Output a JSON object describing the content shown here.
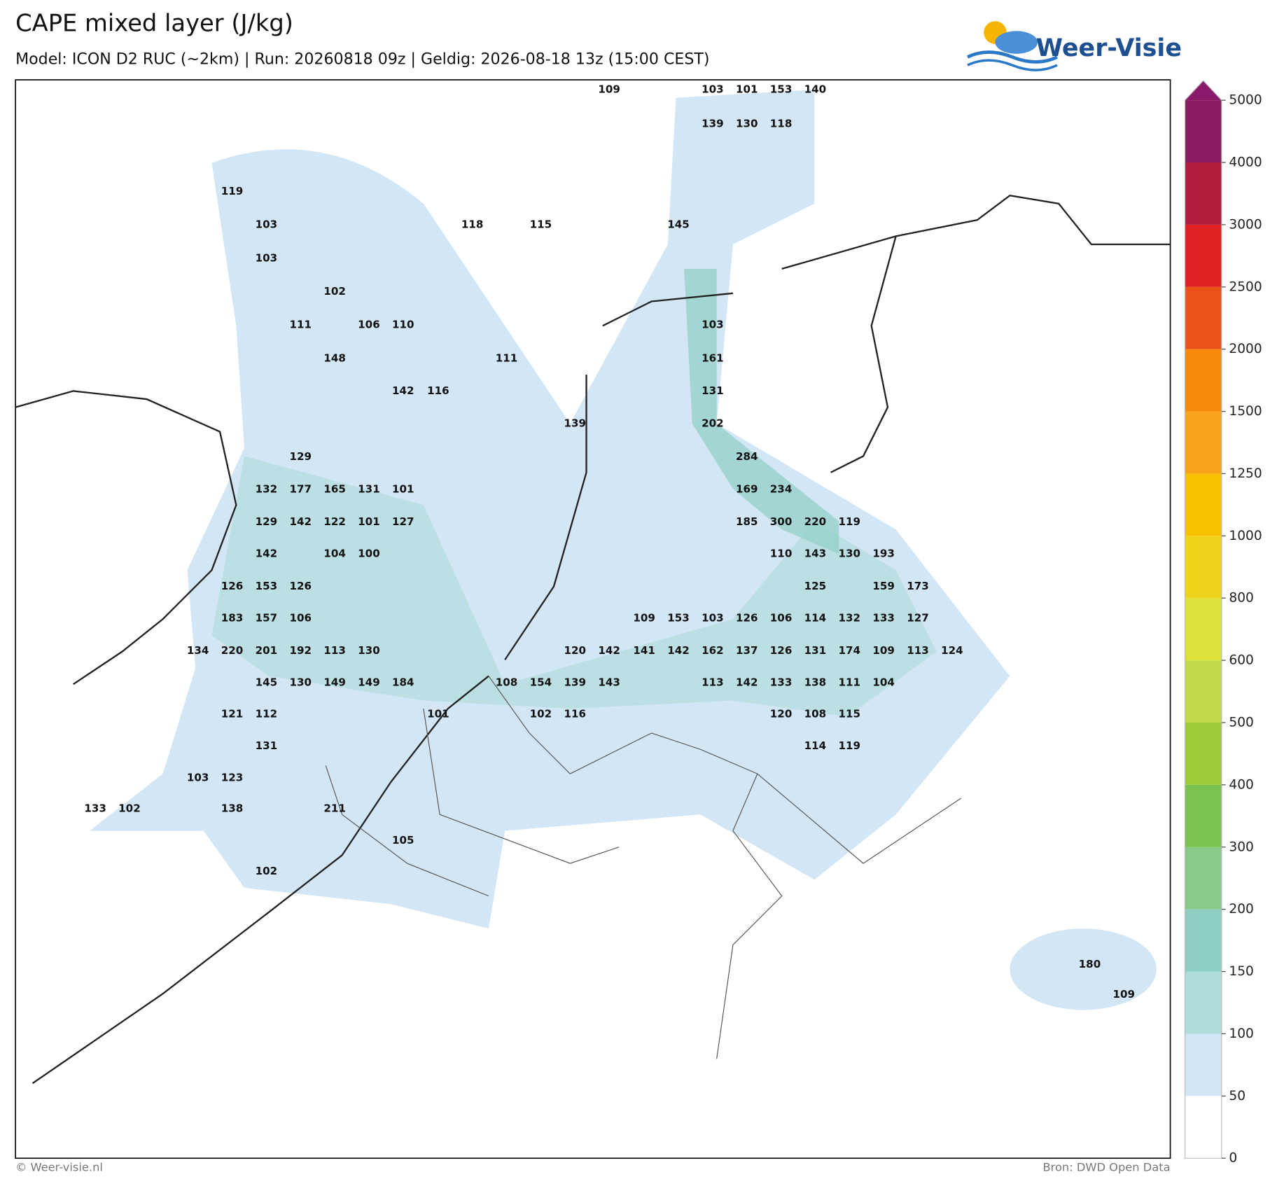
{
  "header": {
    "title": "CAPE mixed layer (J/kg)",
    "subtitle": "Model: ICON D2 RUC (~2km)  |  Run: 20260818 09z  |  Geldig: 2026-08-18 13z (15:00 CEST)",
    "logo": "Weer-Visie"
  },
  "footer": {
    "left": "© Weer-visie.nl",
    "right": "Bron: DWD Open Data"
  },
  "colorbar": {
    "ticks": [
      0,
      50,
      100,
      150,
      200,
      300,
      400,
      500,
      600,
      800,
      1000,
      1250,
      1500,
      2000,
      2500,
      3000,
      4000,
      5000
    ],
    "colors": [
      "#ffffff",
      "#d2e6f5",
      "#b0dcdc",
      "#8ecfc4",
      "#88c98a",
      "#7bc24e",
      "#9ecb3c",
      "#c3d94a",
      "#dce03a",
      "#f0d21b",
      "#f8c200",
      "#f9a21c",
      "#f68b0b",
      "#ea5218",
      "#de2020",
      "#b01d3f",
      "#8a1d60"
    ],
    "extend_color": "#8a1a6b"
  },
  "points": [
    109,
    103,
    101,
    153,
    140,
    139,
    130,
    118,
    119,
    103,
    118,
    115,
    145,
    103,
    102,
    111,
    106,
    110,
    103,
    148,
    111,
    161,
    142,
    116,
    131,
    139,
    202,
    129,
    284,
    132,
    177,
    165,
    131,
    101,
    169,
    234,
    129,
    142,
    122,
    101,
    127,
    185,
    300,
    220,
    119,
    142,
    104,
    100,
    110,
    143,
    130,
    193,
    126,
    153,
    126,
    125,
    159,
    173,
    183,
    157,
    106,
    109,
    153,
    103,
    126,
    106,
    114,
    132,
    133,
    127,
    134,
    220,
    201,
    192,
    113,
    130,
    120,
    142,
    141,
    142,
    162,
    137,
    126,
    131,
    174,
    109,
    113,
    124,
    145,
    130,
    149,
    149,
    184,
    108,
    154,
    139,
    143,
    113,
    142,
    133,
    138,
    111,
    104,
    121,
    112,
    101,
    102,
    116,
    120,
    108,
    115,
    131,
    114,
    119,
    103,
    123,
    133,
    102,
    138,
    211,
    105,
    102,
    180,
    109
  ]
}
